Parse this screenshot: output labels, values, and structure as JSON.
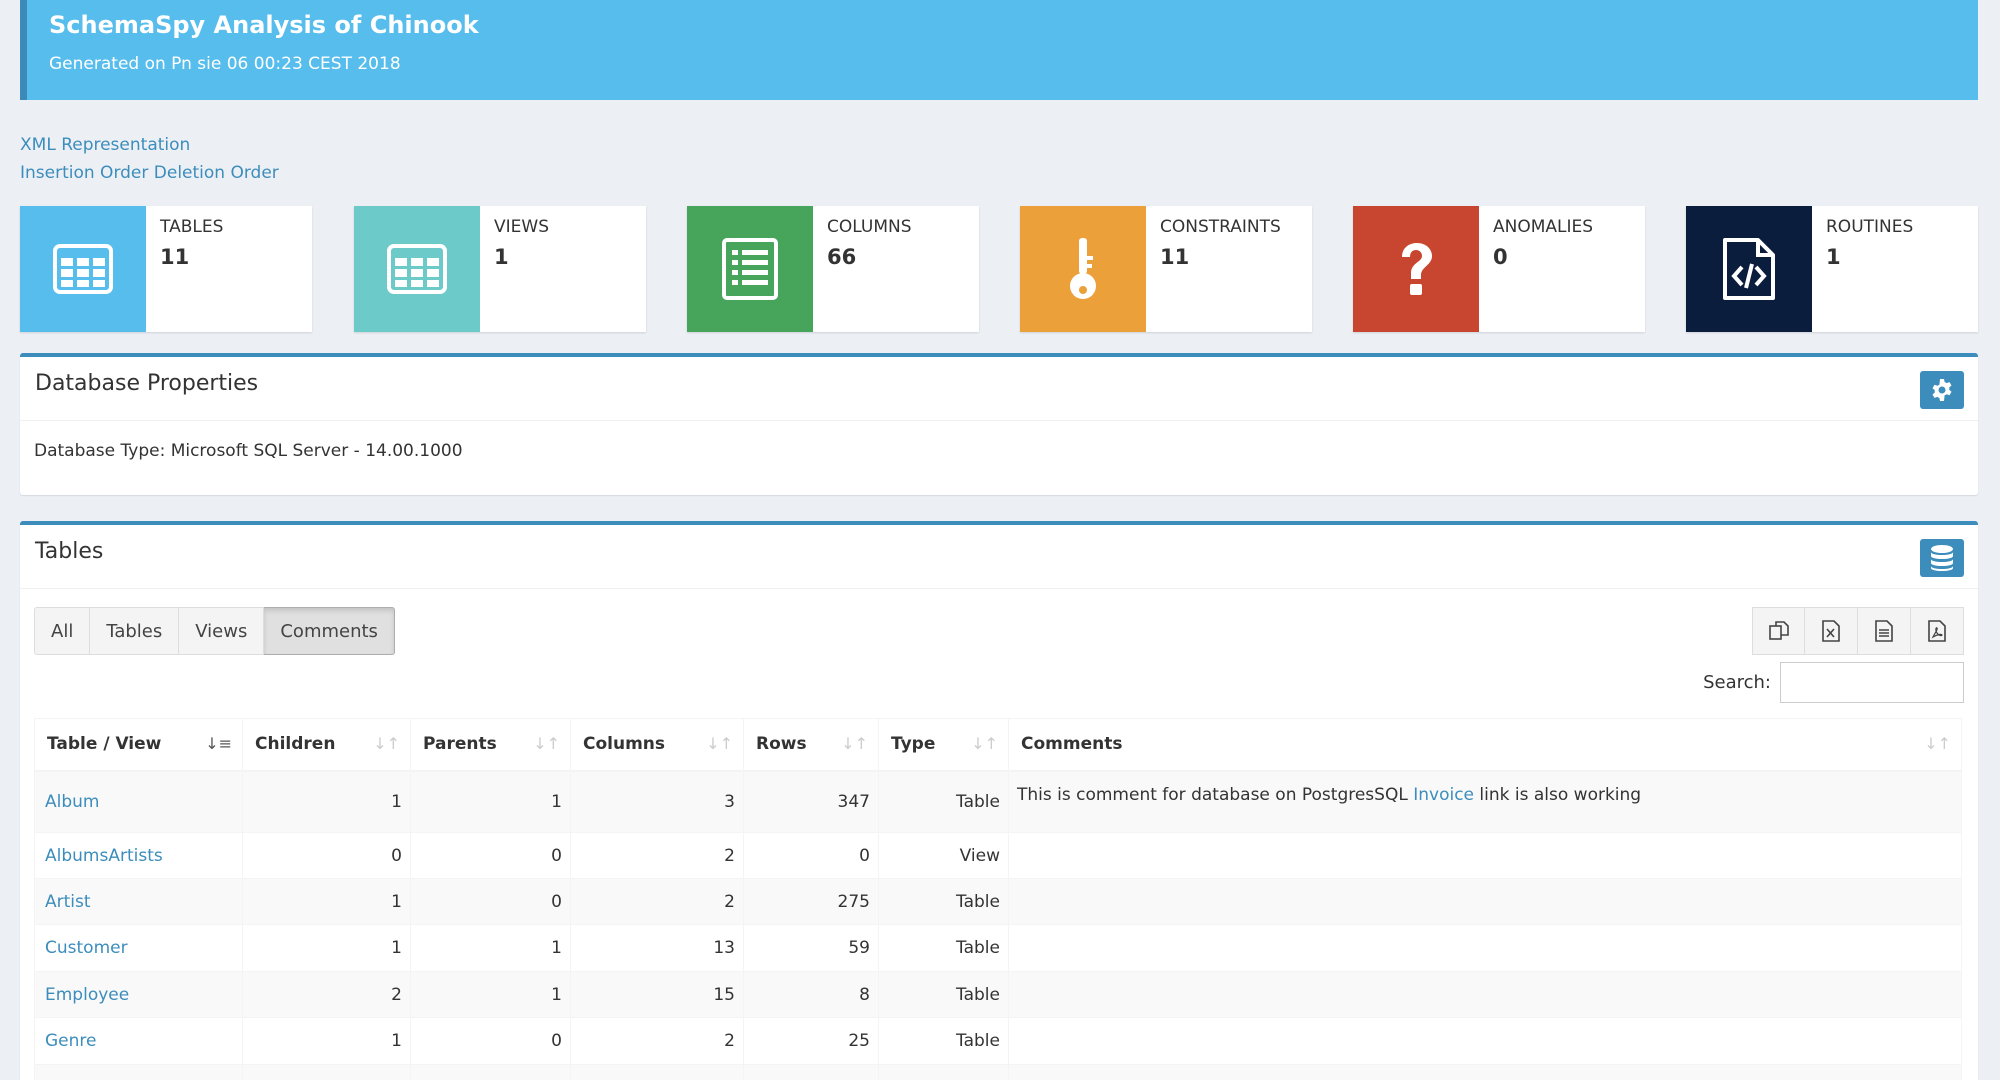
{
  "header": {
    "title": "SchemaSpy Analysis of Chinook",
    "subtitle": "Generated on Pn sie 06 00:23 CEST 2018"
  },
  "links": {
    "xml": "XML Representation",
    "insertion": "Insertion Order",
    "deletion": "Deletion Order"
  },
  "stats": [
    {
      "label": "TABLES",
      "value": "11",
      "color": "#56bdec",
      "icon": "table-grid-icon"
    },
    {
      "label": "VIEWS",
      "value": "1",
      "color": "#6ccac9",
      "icon": "table-grid-icon"
    },
    {
      "label": "COLUMNS",
      "value": "66",
      "color": "#46a55a",
      "icon": "list-icon"
    },
    {
      "label": "CONSTRAINTS",
      "value": "11",
      "color": "#eca03a",
      "icon": "key-icon"
    },
    {
      "label": "ANOMALIES",
      "value": "0",
      "color": "#c84630",
      "icon": "question-icon"
    },
    {
      "label": "ROUTINES",
      "value": "1",
      "color": "#0b1d3d",
      "icon": "code-file-icon"
    }
  ],
  "db_props": {
    "title": "Database Properties",
    "type_text": "Database Type: Microsoft SQL Server - 14.00.1000"
  },
  "tables_box": {
    "title": "Tables",
    "filters": [
      "All",
      "Tables",
      "Views",
      "Comments"
    ],
    "active_filter": "Comments",
    "search_label": "Search:",
    "columns": [
      "Table / View",
      "Children",
      "Parents",
      "Columns",
      "Rows",
      "Type",
      "Comments"
    ],
    "rows": [
      {
        "name": "Album",
        "children": "1",
        "parents": "1",
        "columns": "3",
        "rows": "347",
        "type": "Table",
        "comment_pre": "This is comment for database on PostgresSQL ",
        "comment_link": "Invoice",
        "comment_post": " link is also working"
      },
      {
        "name": "AlbumsArtists",
        "children": "0",
        "parents": "0",
        "columns": "2",
        "rows": "0",
        "type": "View"
      },
      {
        "name": "Artist",
        "children": "1",
        "parents": "0",
        "columns": "2",
        "rows": "275",
        "type": "Table"
      },
      {
        "name": "Customer",
        "children": "1",
        "parents": "1",
        "columns": "13",
        "rows": "59",
        "type": "Table"
      },
      {
        "name": "Employee",
        "children": "2",
        "parents": "1",
        "columns": "15",
        "rows": "8",
        "type": "Table"
      },
      {
        "name": "Genre",
        "children": "1",
        "parents": "0",
        "columns": "2",
        "rows": "25",
        "type": "Table"
      }
    ]
  }
}
